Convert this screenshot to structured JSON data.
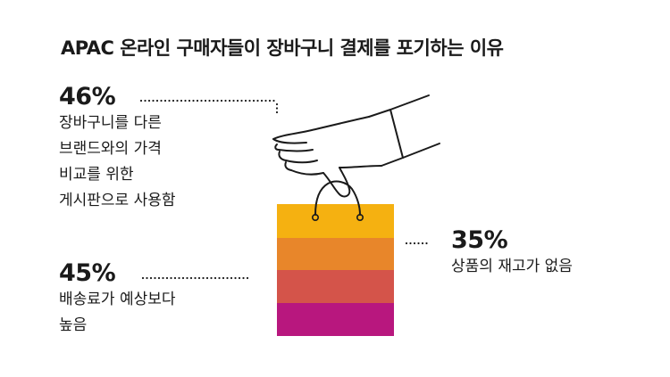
{
  "title": "APAC 온라인 구매자들이 장바구니 결제를 포기하는 이유",
  "stats": [
    {
      "percent": "46%",
      "description": "장바구니를 다른\n브랜드와의 가격\n비교를 위한\n게시판으로 사용함"
    },
    {
      "percent": "45%",
      "description": "배송료가 예상보다\n높음"
    },
    {
      "percent": "35%",
      "description": "상품의 재고가 없음"
    }
  ],
  "bag_colors": [
    "#f5b111",
    "#e8862a",
    "#d4544a",
    "#b8177e"
  ],
  "icons": [
    "hand-holding-bag-icon",
    "shopping-bag-icon"
  ]
}
